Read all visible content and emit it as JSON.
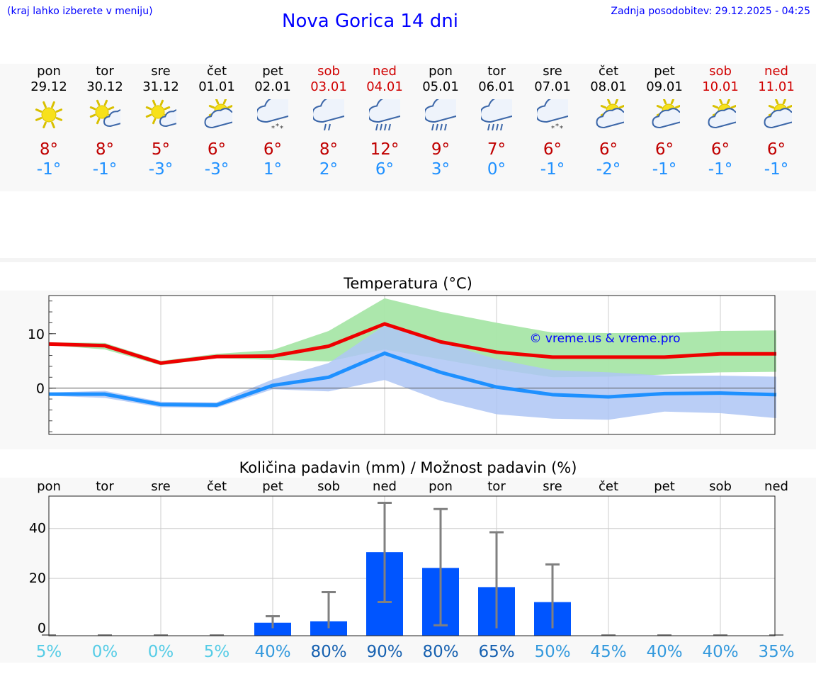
{
  "header": {
    "location_hint": "(kraj lahko izberete v meniju)",
    "title": "Nova Gorica 14 dni",
    "updated": "Zadnja posodobitev: 29.12.2025 - 04:25"
  },
  "days": [
    {
      "name": "pon",
      "date": "29.12",
      "icon": "sunny-icon",
      "max": "8°",
      "min": "-1°",
      "weekend": false
    },
    {
      "name": "tor",
      "date": "30.12",
      "icon": "sun-cloud-small-icon",
      "max": "8°",
      "min": "-1°",
      "weekend": false
    },
    {
      "name": "sre",
      "date": "31.12",
      "icon": "sun-cloud-small-icon",
      "max": "5°",
      "min": "-3°",
      "weekend": false
    },
    {
      "name": "čet",
      "date": "01.01",
      "icon": "partly-cloudy-icon",
      "max": "6°",
      "min": "-3°",
      "weekend": false
    },
    {
      "name": "pet",
      "date": "02.01",
      "icon": "cloud-snow-icon",
      "max": "6°",
      "min": "1°",
      "weekend": false
    },
    {
      "name": "sob",
      "date": "03.01",
      "icon": "cloud-rain-icon",
      "max": "8°",
      "min": "2°",
      "weekend": true
    },
    {
      "name": "ned",
      "date": "04.01",
      "icon": "cloud-heavy-rain-icon",
      "max": "12°",
      "min": "6°",
      "weekend": true
    },
    {
      "name": "pon",
      "date": "05.01",
      "icon": "cloud-heavy-rain-icon",
      "max": "9°",
      "min": "3°",
      "weekend": false
    },
    {
      "name": "tor",
      "date": "06.01",
      "icon": "cloud-heavy-rain-icon",
      "max": "7°",
      "min": "0°",
      "weekend": false
    },
    {
      "name": "sre",
      "date": "07.01",
      "icon": "cloud-snow-icon",
      "max": "6°",
      "min": "-1°",
      "weekend": false
    },
    {
      "name": "čet",
      "date": "08.01",
      "icon": "partly-cloudy-icon",
      "max": "6°",
      "min": "-2°",
      "weekend": false
    },
    {
      "name": "pet",
      "date": "09.01",
      "icon": "partly-cloudy-icon",
      "max": "6°",
      "min": "-1°",
      "weekend": false
    },
    {
      "name": "sob",
      "date": "10.01",
      "icon": "partly-cloudy-icon",
      "max": "6°",
      "min": "-1°",
      "weekend": true
    },
    {
      "name": "ned",
      "date": "11.01",
      "icon": "partly-cloudy-icon",
      "max": "6°",
      "min": "-1°",
      "weekend": true
    }
  ],
  "colors": {
    "max_line": "#ee0000",
    "min_line": "#1e90ff",
    "max_band": "#a8e6a8",
    "min_band": "#aec6f4",
    "bar": "#0055ff",
    "error": "#808080",
    "weekend": "#d00000",
    "title_blue": "#0000ff"
  },
  "chart_data": [
    {
      "type": "line",
      "title": "Temperatura (°C)",
      "watermark": "© vreme.us & vreme.pro",
      "ylim": [
        -8.5,
        17
      ],
      "yticks": [
        0,
        10
      ],
      "series": [
        {
          "name": "max",
          "values": [
            8.1,
            7.8,
            4.6,
            5.8,
            5.9,
            7.7,
            11.8,
            8.5,
            6.6,
            5.7,
            5.7,
            5.7,
            6.3,
            6.3
          ]
        },
        {
          "name": "min",
          "values": [
            -1.1,
            -1.1,
            -3.0,
            -3.1,
            0.5,
            2.0,
            6.4,
            2.9,
            0.2,
            -1.2,
            -1.6,
            -1.0,
            -0.9,
            -1.2
          ]
        }
      ],
      "max_band": {
        "low": [
          7.9,
          7.1,
          4.2,
          5.5,
          5.2,
          4.9,
          7.1,
          5.3,
          3.5,
          2.0,
          2.1,
          2.5,
          2.9,
          3.0
        ],
        "high": [
          8.4,
          8.3,
          5.0,
          6.3,
          7.0,
          10.5,
          16.5,
          14.0,
          12.0,
          10.2,
          10.1,
          10.1,
          10.5,
          10.6
        ]
      },
      "min_band": {
        "low": [
          -1.4,
          -1.8,
          -3.5,
          -3.6,
          -0.2,
          -0.6,
          1.5,
          -2.3,
          -4.8,
          -5.6,
          -5.8,
          -4.3,
          -4.6,
          -5.5
        ],
        "high": [
          -0.8,
          -0.5,
          -2.5,
          -2.6,
          1.6,
          4.6,
          11.5,
          8.5,
          5.3,
          3.3,
          2.9,
          2.3,
          2.3,
          2.1
        ]
      }
    },
    {
      "type": "bar",
      "title": "Količina padavin (mm) / Možnost padavin (%)",
      "categories": [
        "pon",
        "tor",
        "sre",
        "čet",
        "pet",
        "sob",
        "ned",
        "pon",
        "tor",
        "sre",
        "čet",
        "pet",
        "sob",
        "ned"
      ],
      "values": [
        0,
        0,
        0,
        0,
        2.2,
        2.8,
        30.5,
        24.2,
        16.5,
        10.5,
        0,
        0,
        0,
        0
      ],
      "error_low": [
        0,
        0,
        0,
        0,
        0,
        0,
        10.5,
        1.2,
        0,
        0,
        0,
        0,
        0,
        0
      ],
      "error_high": [
        0,
        0,
        0,
        0,
        4.8,
        14.5,
        50.3,
        47.8,
        38.5,
        25.6,
        0,
        0,
        0,
        0
      ],
      "ylim": [
        -3,
        53
      ],
      "yticks": [
        0,
        20,
        40
      ],
      "probabilities": [
        "5%",
        "0%",
        "0%",
        "5%",
        "40%",
        "80%",
        "90%",
        "80%",
        "65%",
        "50%",
        "45%",
        "40%",
        "40%",
        "35%"
      ],
      "probability_values": [
        5,
        0,
        0,
        5,
        40,
        80,
        90,
        80,
        65,
        50,
        45,
        40,
        40,
        35
      ]
    }
  ]
}
